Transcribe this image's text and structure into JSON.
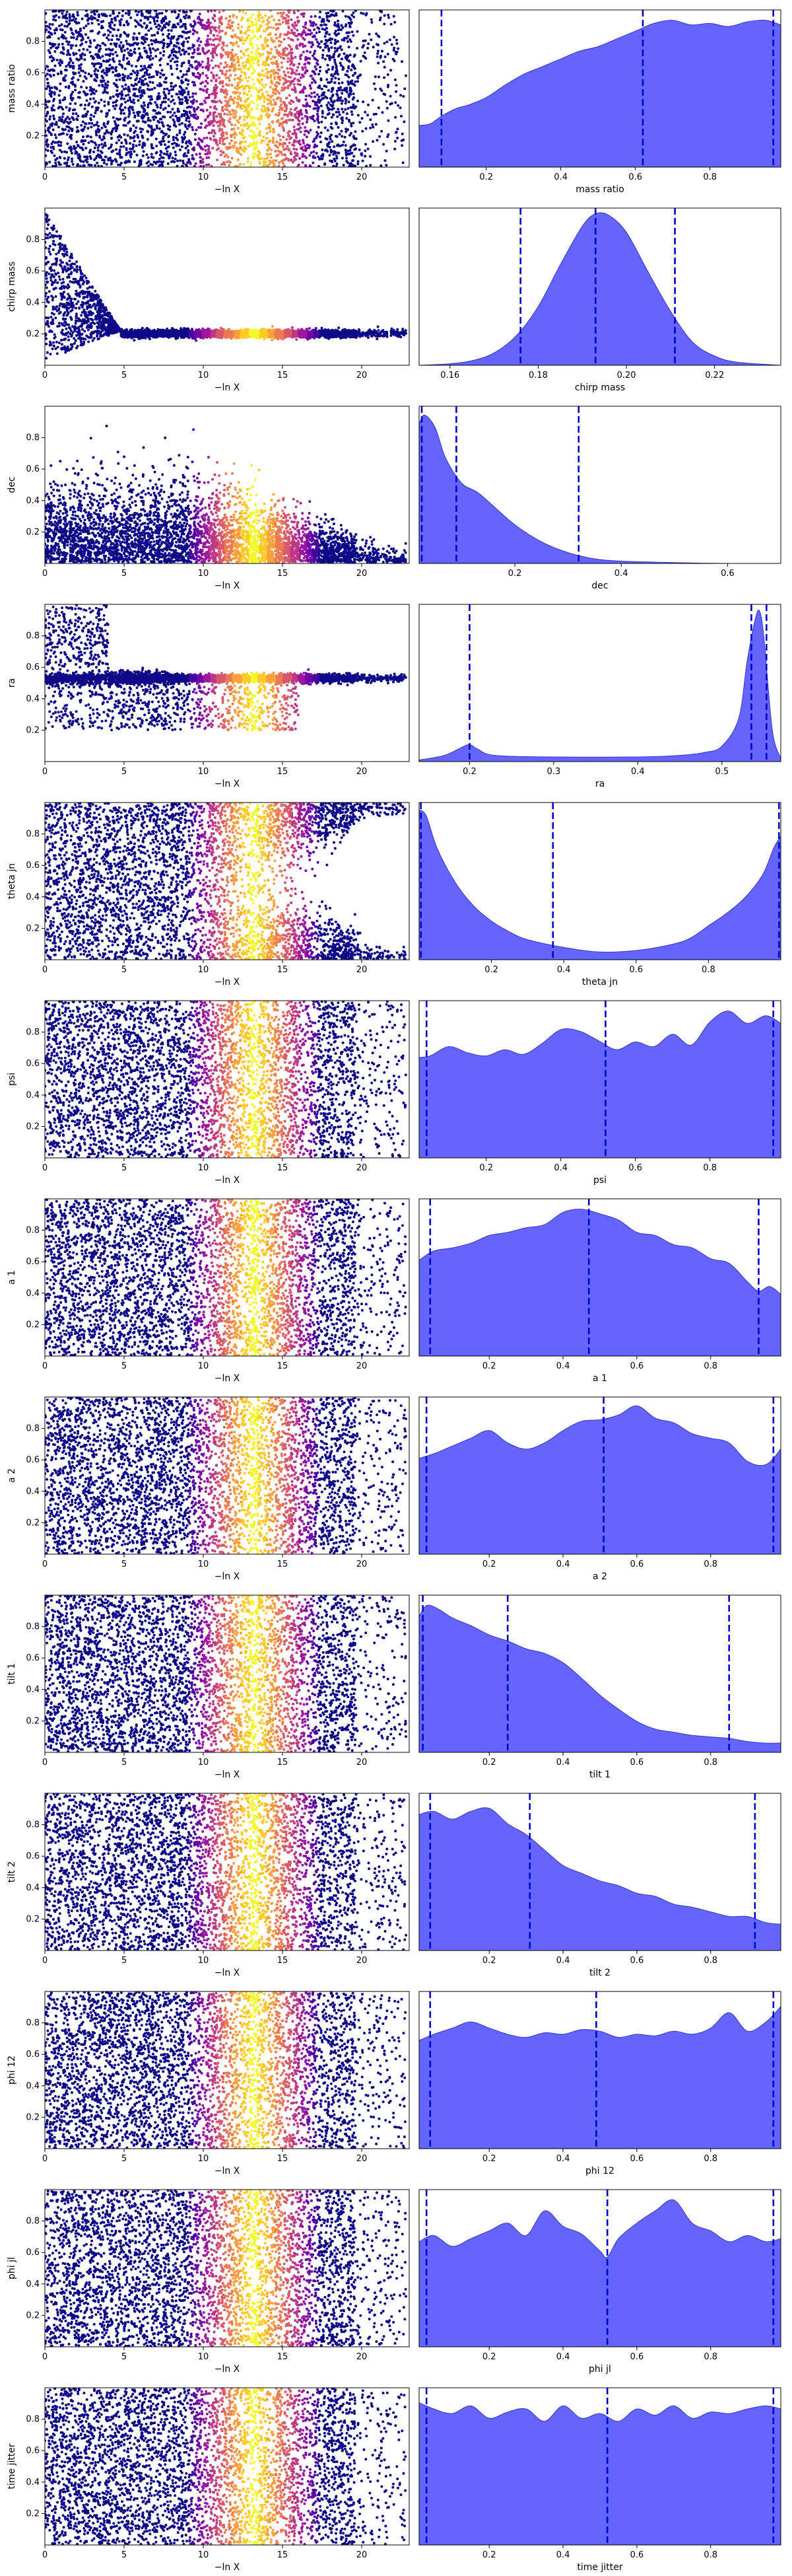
{
  "chart_data": {
    "type": "scatter+kde",
    "layout": "13 rows x 2 columns",
    "left_xlabel": "−ln X",
    "left_xticks": [
      0,
      5,
      10,
      15,
      20
    ],
    "left_xlim": [
      0,
      23
    ],
    "colormap": [
      "#0d0887",
      "#46039f",
      "#7201a8",
      "#9c179e",
      "#bd3786",
      "#d8576b",
      "#ed7953",
      "#fb9f3a",
      "#fdca26",
      "#f0f921"
    ],
    "kde_fill_color": "#6464ff",
    "kde_edge_color": "#3333cc",
    "quantile_line_color": "#0000cc",
    "rows": [
      {
        "name": "mass ratio",
        "ylabel": "mass ratio",
        "xlabel": "mass ratio",
        "pattern": "uniform",
        "left_yticks": [
          "0.2",
          "0.4",
          "0.6",
          "0.8"
        ],
        "right_xlim": [
          0.02,
          0.99
        ],
        "right_xticks": [
          "0.2",
          "0.4",
          "0.6",
          "0.8"
        ],
        "kde_x": [
          0.02,
          0.05,
          0.08,
          0.12,
          0.15,
          0.2,
          0.25,
          0.3,
          0.35,
          0.4,
          0.45,
          0.5,
          0.55,
          0.6,
          0.65,
          0.7,
          0.75,
          0.8,
          0.85,
          0.9,
          0.95,
          0.99
        ],
        "kde_y": [
          0.27,
          0.28,
          0.33,
          0.38,
          0.4,
          0.45,
          0.53,
          0.6,
          0.65,
          0.7,
          0.75,
          0.78,
          0.83,
          0.88,
          0.93,
          0.95,
          0.92,
          0.93,
          0.91,
          0.94,
          0.95,
          0.92
        ],
        "quantiles": [
          0.08,
          0.62,
          0.97
        ]
      },
      {
        "name": "chirp mass",
        "ylabel": "chirp mass",
        "xlabel": "chirp mass",
        "pattern": "funnel",
        "left_yticks": [
          "0.2",
          "0.4",
          "0.6",
          "0.8"
        ],
        "converge_y": 0.2,
        "right_xlim": [
          0.153,
          0.235
        ],
        "right_xticks": [
          "0.16",
          "0.18",
          "0.20",
          "0.22"
        ],
        "kde_x": [
          0.153,
          0.16,
          0.165,
          0.17,
          0.175,
          0.18,
          0.185,
          0.19,
          0.193,
          0.196,
          0.2,
          0.205,
          0.21,
          0.215,
          0.22,
          0.225,
          0.235
        ],
        "kde_y": [
          0.0,
          0.01,
          0.03,
          0.08,
          0.19,
          0.38,
          0.65,
          0.9,
          0.98,
          0.97,
          0.86,
          0.6,
          0.35,
          0.15,
          0.06,
          0.02,
          0.0
        ],
        "quantiles": [
          0.176,
          0.193,
          0.211
        ]
      },
      {
        "name": "dec",
        "ylabel": "dec",
        "xlabel": "dec",
        "pattern": "low",
        "left_yticks": [
          "0.2",
          "0.4",
          "0.6",
          "0.8"
        ],
        "right_xlim": [
          0.02,
          0.7
        ],
        "right_xticks": [
          "0.2",
          "0.4",
          "0.6"
        ],
        "kde_x": [
          0.02,
          0.03,
          0.05,
          0.07,
          0.1,
          0.13,
          0.16,
          0.2,
          0.25,
          0.3,
          0.35,
          0.4,
          0.5,
          0.6,
          0.7
        ],
        "kde_y": [
          0.9,
          0.96,
          0.88,
          0.68,
          0.52,
          0.46,
          0.37,
          0.25,
          0.14,
          0.07,
          0.03,
          0.015,
          0.005,
          0.0,
          0.0
        ],
        "quantiles": [
          0.025,
          0.09,
          0.32
        ]
      },
      {
        "name": "ra",
        "ylabel": "ra",
        "xlabel": "ra",
        "pattern": "bimodal",
        "left_yticks": [
          "0.2",
          "0.4",
          "0.6",
          "0.8"
        ],
        "converge_y": 0.53,
        "right_xlim": [
          0.14,
          0.57
        ],
        "right_xticks": [
          "0.2",
          "0.3",
          "0.4",
          "0.5"
        ],
        "kde_x": [
          0.14,
          0.17,
          0.19,
          0.2,
          0.21,
          0.23,
          0.3,
          0.4,
          0.45,
          0.48,
          0.5,
          0.52,
          0.53,
          0.54,
          0.545,
          0.55,
          0.56,
          0.57
        ],
        "kde_y": [
          0.01,
          0.04,
          0.09,
          0.11,
          0.08,
          0.04,
          0.03,
          0.03,
          0.04,
          0.06,
          0.1,
          0.28,
          0.65,
          0.93,
          0.97,
          0.8,
          0.2,
          0.02
        ],
        "quantiles": [
          0.2,
          0.535,
          0.553
        ]
      },
      {
        "name": "theta jn",
        "ylabel": "theta jn",
        "xlabel": "theta jn",
        "pattern": "edges",
        "left_yticks": [
          "0.2",
          "0.4",
          "0.6",
          "0.8"
        ],
        "right_xlim": [
          0.0,
          1.0
        ],
        "right_xticks": [
          "0.2",
          "0.4",
          "0.6",
          "0.8"
        ],
        "kde_x": [
          0.0,
          0.02,
          0.05,
          0.1,
          0.15,
          0.2,
          0.25,
          0.3,
          0.4,
          0.5,
          0.6,
          0.7,
          0.75,
          0.8,
          0.85,
          0.9,
          0.95,
          0.98,
          1.0
        ],
        "kde_y": [
          0.97,
          0.93,
          0.72,
          0.5,
          0.35,
          0.25,
          0.18,
          0.13,
          0.08,
          0.05,
          0.06,
          0.1,
          0.14,
          0.22,
          0.3,
          0.4,
          0.55,
          0.72,
          0.8
        ],
        "quantiles": [
          0.005,
          0.37,
          0.995
        ]
      },
      {
        "name": "psi",
        "ylabel": "psi",
        "xlabel": "psi",
        "pattern": "uniform",
        "left_yticks": [
          "0.2",
          "0.4",
          "0.6",
          "0.8"
        ],
        "right_xlim": [
          0.02,
          0.99
        ],
        "right_xticks": [
          "0.2",
          "0.4",
          "0.6",
          "0.8"
        ],
        "kde_x": [
          0.02,
          0.05,
          0.1,
          0.15,
          0.2,
          0.25,
          0.3,
          0.35,
          0.4,
          0.45,
          0.5,
          0.55,
          0.6,
          0.65,
          0.7,
          0.75,
          0.8,
          0.85,
          0.9,
          0.95,
          0.99
        ],
        "kde_y": [
          0.65,
          0.66,
          0.72,
          0.68,
          0.66,
          0.7,
          0.67,
          0.74,
          0.83,
          0.82,
          0.76,
          0.7,
          0.75,
          0.72,
          0.8,
          0.73,
          0.88,
          0.95,
          0.87,
          0.92,
          0.87
        ],
        "quantiles": [
          0.04,
          0.52,
          0.97
        ]
      },
      {
        "name": "a 1",
        "ylabel": "a 1",
        "xlabel": "a 1",
        "pattern": "uniform",
        "left_yticks": [
          "0.2",
          "0.4",
          "0.6",
          "0.8"
        ],
        "right_xlim": [
          0.01,
          0.99
        ],
        "right_xticks": [
          "0.2",
          "0.4",
          "0.6",
          "0.8"
        ],
        "kde_x": [
          0.01,
          0.05,
          0.1,
          0.15,
          0.2,
          0.25,
          0.3,
          0.35,
          0.4,
          0.45,
          0.5,
          0.55,
          0.6,
          0.65,
          0.7,
          0.75,
          0.8,
          0.85,
          0.9,
          0.93,
          0.96,
          0.99
        ],
        "kde_y": [
          0.62,
          0.68,
          0.7,
          0.73,
          0.78,
          0.8,
          0.83,
          0.85,
          0.93,
          0.95,
          0.92,
          0.88,
          0.8,
          0.78,
          0.72,
          0.7,
          0.63,
          0.6,
          0.48,
          0.42,
          0.45,
          0.4
        ],
        "quantiles": [
          0.04,
          0.47,
          0.93
        ]
      },
      {
        "name": "a 2",
        "ylabel": "a 2",
        "xlabel": "a 2",
        "pattern": "uniform",
        "left_yticks": [
          "0.2",
          "0.4",
          "0.6",
          "0.8"
        ],
        "right_xlim": [
          0.01,
          0.99
        ],
        "right_xticks": [
          "0.2",
          "0.4",
          "0.6",
          "0.8"
        ],
        "kde_x": [
          0.01,
          0.05,
          0.1,
          0.15,
          0.2,
          0.25,
          0.3,
          0.35,
          0.4,
          0.45,
          0.5,
          0.55,
          0.6,
          0.65,
          0.7,
          0.75,
          0.8,
          0.85,
          0.9,
          0.95,
          0.99
        ],
        "kde_y": [
          0.62,
          0.65,
          0.7,
          0.75,
          0.8,
          0.72,
          0.68,
          0.72,
          0.8,
          0.86,
          0.87,
          0.9,
          0.96,
          0.88,
          0.85,
          0.78,
          0.75,
          0.72,
          0.6,
          0.58,
          0.68
        ],
        "quantiles": [
          0.03,
          0.51,
          0.97
        ]
      },
      {
        "name": "tilt 1",
        "ylabel": "tilt 1",
        "xlabel": "tilt 1",
        "pattern": "uniform",
        "left_yticks": [
          "0.2",
          "0.4",
          "0.6",
          "0.8"
        ],
        "right_xlim": [
          0.01,
          0.99
        ],
        "right_xticks": [
          "0.2",
          "0.4",
          "0.6",
          "0.8"
        ],
        "kde_x": [
          0.01,
          0.03,
          0.06,
          0.1,
          0.15,
          0.2,
          0.25,
          0.3,
          0.35,
          0.4,
          0.45,
          0.5,
          0.55,
          0.6,
          0.65,
          0.7,
          0.75,
          0.8,
          0.85,
          0.9,
          0.95,
          0.99
        ],
        "kde_y": [
          0.88,
          0.95,
          0.93,
          0.87,
          0.82,
          0.76,
          0.72,
          0.67,
          0.64,
          0.58,
          0.48,
          0.37,
          0.28,
          0.2,
          0.15,
          0.13,
          0.11,
          0.1,
          0.09,
          0.07,
          0.06,
          0.06
        ],
        "quantiles": [
          0.02,
          0.25,
          0.85
        ]
      },
      {
        "name": "tilt 2",
        "ylabel": "tilt 2",
        "xlabel": "tilt 2",
        "pattern": "uniform",
        "left_yticks": [
          "0.2",
          "0.4",
          "0.6",
          "0.8"
        ],
        "right_xlim": [
          0.01,
          0.99
        ],
        "right_xticks": [
          "0.2",
          "0.4",
          "0.6",
          "0.8"
        ],
        "kde_x": [
          0.01,
          0.05,
          0.1,
          0.15,
          0.2,
          0.25,
          0.3,
          0.35,
          0.4,
          0.45,
          0.5,
          0.55,
          0.6,
          0.65,
          0.7,
          0.75,
          0.8,
          0.85,
          0.9,
          0.95,
          0.99
        ],
        "kde_y": [
          0.88,
          0.9,
          0.85,
          0.9,
          0.92,
          0.82,
          0.75,
          0.65,
          0.55,
          0.5,
          0.45,
          0.42,
          0.37,
          0.35,
          0.3,
          0.28,
          0.25,
          0.22,
          0.22,
          0.18,
          0.17
        ],
        "quantiles": [
          0.04,
          0.31,
          0.92
        ]
      },
      {
        "name": "phi 12",
        "ylabel": "phi 12",
        "xlabel": "phi 12",
        "pattern": "uniform",
        "left_yticks": [
          "0.2",
          "0.4",
          "0.6",
          "0.8"
        ],
        "right_xlim": [
          0.01,
          0.99
        ],
        "right_xticks": [
          "0.2",
          "0.4",
          "0.6",
          "0.8"
        ],
        "kde_x": [
          0.01,
          0.05,
          0.1,
          0.15,
          0.2,
          0.25,
          0.3,
          0.35,
          0.4,
          0.45,
          0.5,
          0.55,
          0.6,
          0.65,
          0.7,
          0.75,
          0.8,
          0.85,
          0.9,
          0.95,
          0.99
        ],
        "kde_y": [
          0.7,
          0.74,
          0.78,
          0.82,
          0.78,
          0.74,
          0.72,
          0.75,
          0.74,
          0.77,
          0.76,
          0.72,
          0.74,
          0.73,
          0.76,
          0.74,
          0.78,
          0.88,
          0.76,
          0.82,
          0.92
        ],
        "quantiles": [
          0.04,
          0.49,
          0.97
        ]
      },
      {
        "name": "phi jl",
        "ylabel": "phi jl",
        "xlabel": "phi jl",
        "pattern": "uniform",
        "left_yticks": [
          "0.2",
          "0.4",
          "0.6",
          "0.8"
        ],
        "right_xlim": [
          0.01,
          0.99
        ],
        "right_xticks": [
          "0.2",
          "0.4",
          "0.6",
          "0.8"
        ],
        "kde_x": [
          0.01,
          0.05,
          0.1,
          0.15,
          0.2,
          0.25,
          0.3,
          0.35,
          0.4,
          0.45,
          0.5,
          0.52,
          0.55,
          0.6,
          0.65,
          0.7,
          0.75,
          0.8,
          0.85,
          0.9,
          0.95,
          0.99
        ],
        "kde_y": [
          0.68,
          0.72,
          0.65,
          0.7,
          0.75,
          0.8,
          0.72,
          0.88,
          0.78,
          0.73,
          0.62,
          0.58,
          0.7,
          0.8,
          0.88,
          0.95,
          0.8,
          0.75,
          0.68,
          0.72,
          0.68,
          0.7
        ],
        "quantiles": [
          0.03,
          0.52,
          0.97
        ]
      },
      {
        "name": "time jitter",
        "ylabel": "time jitter",
        "xlabel": "time jitter",
        "pattern": "uniform",
        "left_yticks": [
          "0.2",
          "0.4",
          "0.6",
          "0.8"
        ],
        "right_xlim": [
          0.01,
          0.99
        ],
        "right_xticks": [
          "0.2",
          "0.4",
          "0.6",
          "0.8"
        ],
        "kde_x": [
          0.01,
          0.05,
          0.1,
          0.15,
          0.2,
          0.25,
          0.3,
          0.35,
          0.4,
          0.45,
          0.5,
          0.55,
          0.6,
          0.65,
          0.7,
          0.75,
          0.8,
          0.85,
          0.9,
          0.95,
          0.99
        ],
        "kde_y": [
          0.92,
          0.88,
          0.85,
          0.9,
          0.82,
          0.86,
          0.88,
          0.8,
          0.9,
          0.82,
          0.85,
          0.8,
          0.88,
          0.84,
          0.9,
          0.82,
          0.86,
          0.85,
          0.88,
          0.9,
          0.88
        ],
        "quantiles": [
          0.03,
          0.52,
          0.97
        ]
      }
    ]
  }
}
